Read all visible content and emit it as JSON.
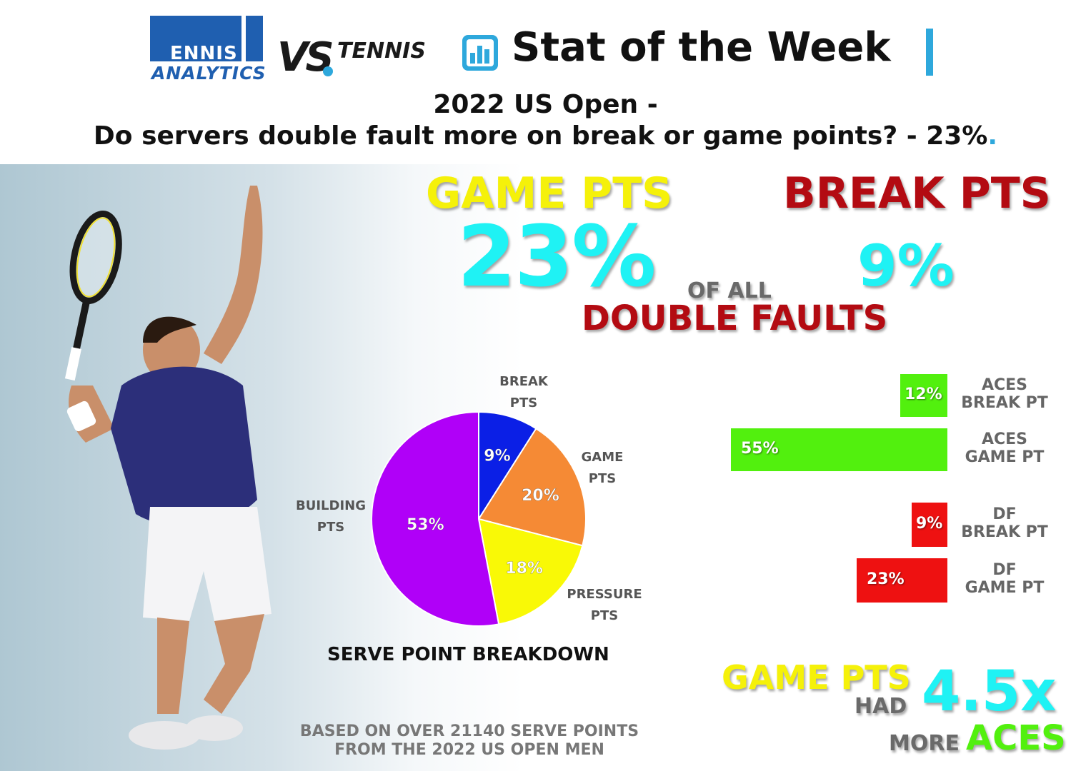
{
  "header": {
    "logo1_top": "ENNIS",
    "logo1_bottom": "ANALYTICS",
    "logo2_vs": "VS",
    "logo2_tennis": "TENNIS",
    "title": "Stat of the Week",
    "headline_line1": "2022 US Open -",
    "headline_line2": "Do servers double fault more on break or game points? - 23%",
    "headline_dot": "."
  },
  "big_stats": {
    "game_pts_label": "GAME PTS",
    "break_pts_label": "BREAK PTS",
    "game_pts_value": "23%",
    "break_pts_value": "9%",
    "of_all": "OF ALL",
    "double_faults": "DOUBLE FAULTS"
  },
  "colors": {
    "yellow": "#f5f10a",
    "dark_red": "#b30b12",
    "cyan": "#1ff2f4",
    "blue_accent": "#2ea8dc",
    "green": "#52f00e",
    "red": "#ee1111"
  },
  "chart_data": [
    {
      "type": "pie",
      "title": "SERVE POINT BREAKDOWN",
      "slices": [
        {
          "label": "BREAK PTS",
          "label_line1": "BREAK",
          "label_line2": "PTS",
          "value": 9,
          "display": "9%",
          "color": "#0b1fe6"
        },
        {
          "label": "GAME PTS",
          "label_line1": "GAME",
          "label_line2": "PTS",
          "value": 20,
          "display": "20%",
          "color": "#f58a35"
        },
        {
          "label": "PRESSURE PTS",
          "label_line1": "PRESSURE",
          "label_line2": "PTS",
          "value": 18,
          "display": "18%",
          "color": "#f9f906"
        },
        {
          "label": "BUILDING PTS",
          "label_line1": "BUILDING",
          "label_line2": "PTS",
          "value": 53,
          "display": "53%",
          "color": "#b000f8"
        }
      ]
    },
    {
      "type": "bar",
      "orientation": "horizontal",
      "xlim": [
        0,
        60
      ],
      "bars": [
        {
          "label_line1": "ACES",
          "label_line2": "BREAK PT",
          "value": 12,
          "display": "12%",
          "color": "#52f00e"
        },
        {
          "label_line1": "ACES",
          "label_line2": "GAME PT",
          "value": 55,
          "display": "55%",
          "color": "#52f00e"
        },
        {
          "label_line1": "DF",
          "label_line2": "BREAK PT",
          "value": 9,
          "display": "9%",
          "color": "#ee1111"
        },
        {
          "label_line1": "DF",
          "label_line2": "GAME PT",
          "value": 23,
          "display": "23%",
          "color": "#ee1111"
        }
      ]
    }
  ],
  "summary": {
    "game_pts": "GAME PTS",
    "had": "HAD",
    "multiplier": "4.5x",
    "more": "MORE",
    "aces": "ACES"
  },
  "footnote": {
    "line1": "BASED ON OVER 21140 SERVE POINTS",
    "line2": "FROM THE 2022 US OPEN MEN"
  }
}
